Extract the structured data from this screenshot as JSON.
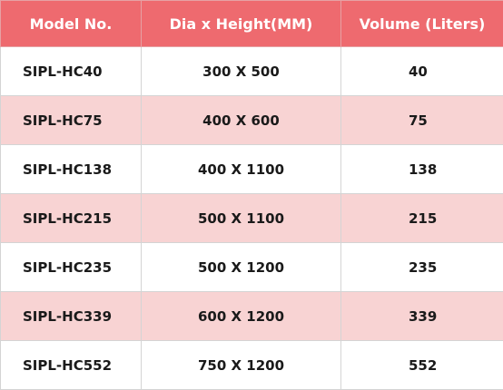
{
  "table": {
    "headers": [
      "Model No.",
      "Dia x Height(MM)",
      "Volume (Liters)"
    ],
    "rows": [
      {
        "model": "SIPL-HC40",
        "dimensions": "300 X 500",
        "volume": "40"
      },
      {
        "model": "SIPL-HC75",
        "dimensions": "400 X 600",
        "volume": "75"
      },
      {
        "model": "SIPL-HC138",
        "dimensions": "400 X 1100",
        "volume": "138"
      },
      {
        "model": "SIPL-HC215",
        "dimensions": "500 X 1100",
        "volume": "215"
      },
      {
        "model": "SIPL-HC235",
        "dimensions": "500 X 1200",
        "volume": "235"
      },
      {
        "model": "SIPL-HC339",
        "dimensions": "600 X 1200",
        "volume": "339"
      },
      {
        "model": "SIPL-HC552",
        "dimensions": "750 X 1200",
        "volume": "552"
      }
    ]
  },
  "colors": {
    "header_bg": "#ee6a6f",
    "header_text": "#ffffff",
    "stripe_bg": "#f8d3d3",
    "row_bg": "#ffffff"
  }
}
